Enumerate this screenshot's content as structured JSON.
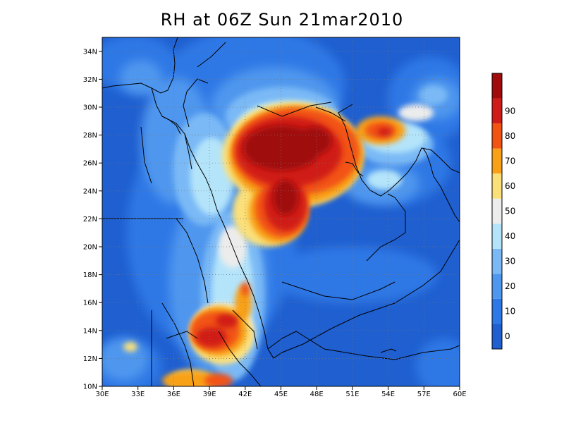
{
  "title": "RH at 06Z Sun 21mar2010",
  "lat_labels": [
    "10N",
    "12N",
    "14N",
    "16N",
    "18N",
    "20N",
    "22N",
    "24N",
    "26N",
    "28N",
    "30N",
    "32N",
    "34N"
  ],
  "lon_labels": [
    "30E",
    "33E",
    "36E",
    "39E",
    "42E",
    "45E",
    "48E",
    "51E",
    "54E",
    "57E",
    "60E"
  ],
  "lat_values": [
    10,
    12,
    14,
    16,
    18,
    20,
    22,
    24,
    26,
    28,
    30,
    32,
    34
  ],
  "lon_values": [
    30,
    33,
    36,
    39,
    42,
    45,
    48,
    51,
    54,
    57,
    60
  ],
  "domain": {
    "lon_min": 30,
    "lon_max": 60,
    "lat_min": 10,
    "lat_max": 35
  },
  "colorbar": {
    "labels": [
      "0",
      "10",
      "20",
      "30",
      "40",
      "50",
      "60",
      "70",
      "80",
      "90"
    ],
    "colors": [
      "#1f5fd0",
      "#2d78e6",
      "#4f97ee",
      "#7ab9f6",
      "#b4e4fa",
      "#ececec",
      "#fbe07a",
      "#f8a018",
      "#f25212",
      "#d01c18",
      "#a00c0c"
    ]
  },
  "background_color": "#1f5fd0"
}
